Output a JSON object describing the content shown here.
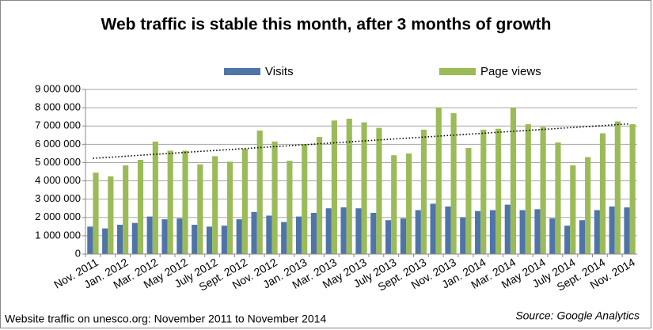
{
  "chart_data": {
    "type": "bar",
    "title": "Web traffic is stable this month, after 3 months of growth",
    "footnote": "Website traffic on unesco.org: November 2011 to November 2014",
    "source": "Source: Google Analytics",
    "categories": [
      "Nov. 2011",
      null,
      "Jan. 2012",
      null,
      "Mar. 2012",
      null,
      "May 2012",
      null,
      "July 2012",
      null,
      "Sept. 2012",
      null,
      "Nov. 2012",
      null,
      "Jan. 2013",
      null,
      "Mar. 2013",
      null,
      "May 2013",
      null,
      "July 2013",
      null,
      "Sept. 2013",
      null,
      "Nov. 2013",
      null,
      "Jan. 2014",
      null,
      "Mar. 2014",
      null,
      "May 2014",
      null,
      "July 2014",
      null,
      "Sept. 2014",
      null,
      "Nov. 2014"
    ],
    "series": [
      {
        "name": "Visits",
        "color": "#4f74a8",
        "values": [
          1500000,
          1400000,
          1600000,
          1700000,
          2050000,
          1900000,
          1950000,
          1600000,
          1500000,
          1550000,
          1900000,
          2300000,
          2100000,
          1750000,
          2050000,
          2250000,
          2500000,
          2550000,
          2500000,
          2250000,
          1850000,
          1950000,
          2400000,
          2750000,
          2600000,
          2000000,
          2350000,
          2400000,
          2700000,
          2400000,
          2450000,
          1950000,
          1550000,
          1850000,
          2400000,
          2600000,
          2550000
        ]
      },
      {
        "name": "Page views",
        "color": "#9bbb59",
        "values": [
          4450000,
          4250000,
          4850000,
          5150000,
          6150000,
          5650000,
          5650000,
          4900000,
          5350000,
          5050000,
          5750000,
          6750000,
          6150000,
          5100000,
          6000000,
          6400000,
          7300000,
          7400000,
          7200000,
          6900000,
          5400000,
          5500000,
          6800000,
          8000000,
          7700000,
          5800000,
          6800000,
          6850000,
          8000000,
          7100000,
          6950000,
          6100000,
          4850000,
          5300000,
          6600000,
          7250000,
          7100000
        ]
      }
    ],
    "trendline": true,
    "ylim": [
      0,
      9000000
    ],
    "yticks": [
      0,
      {
        "value": 1000000,
        "label": "1 000 000"
      },
      {
        "value": 2000000,
        "label": "2 000 000"
      },
      {
        "value": 3000000,
        "label": "3 000 000"
      },
      {
        "value": 4000000,
        "label": "4 000 000"
      },
      {
        "value": 5000000,
        "label": "5 000 000"
      },
      {
        "value": 6000000,
        "label": "6 000 000"
      },
      {
        "value": 7000000,
        "label": "7 000 000"
      },
      {
        "value": 8000000,
        "label": "8 000 000"
      },
      {
        "value": 9000000,
        "label": "9 000 000"
      }
    ],
    "grid": true
  }
}
